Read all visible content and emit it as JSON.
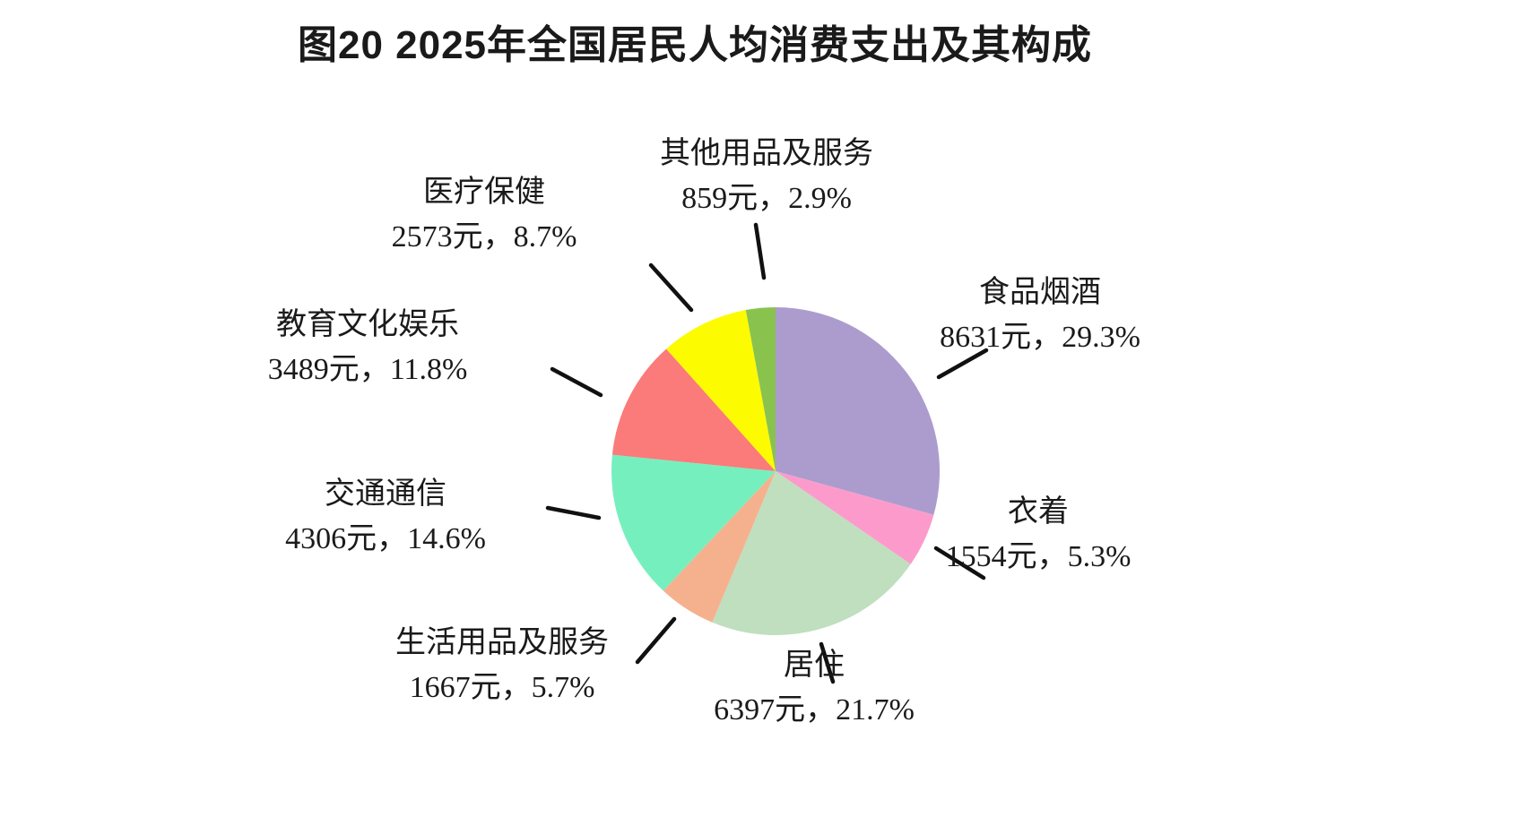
{
  "title": "图20  2025年全国居民人均消费支出及其构成",
  "chart_data": {
    "type": "pie",
    "title": "图20  2025年全国居民人均消费支出及其构成",
    "unit": "元",
    "start_angle": "12-oclock",
    "direction": "clockwise",
    "legend_position": "outside-labels-with-leader-lines",
    "slices": [
      {
        "label": "食品烟酒",
        "value_yuan": 8631,
        "percent": 29.3,
        "value_label": "8631元，29.3%",
        "color": "#AC9CCE"
      },
      {
        "label": "衣着",
        "value_yuan": 1554,
        "percent": 5.3,
        "value_label": "1554元，5.3%",
        "color": "#FC9BCB"
      },
      {
        "label": "居住",
        "value_yuan": 6397,
        "percent": 21.7,
        "value_label": "6397元，21.7%",
        "color": "#BFDFBF"
      },
      {
        "label": "生活用品及服务",
        "value_yuan": 1667,
        "percent": 5.7,
        "value_label": "1667元，5.7%",
        "color": "#F5B18E"
      },
      {
        "label": "交通通信",
        "value_yuan": 4306,
        "percent": 14.6,
        "value_label": "4306元，14.6%",
        "color": "#76EFBE"
      },
      {
        "label": "教育文化娱乐",
        "value_yuan": 3489,
        "percent": 11.8,
        "value_label": "3489元，11.8%",
        "color": "#FA7B79"
      },
      {
        "label": "医疗保健",
        "value_yuan": 2573,
        "percent": 8.7,
        "value_label": "2573元，8.7%",
        "color": "#FDFB00"
      },
      {
        "label": "其他用品及服务",
        "value_yuan": 859,
        "percent": 2.9,
        "value_label": "859元，2.9%",
        "color": "#8AC24E"
      }
    ]
  }
}
